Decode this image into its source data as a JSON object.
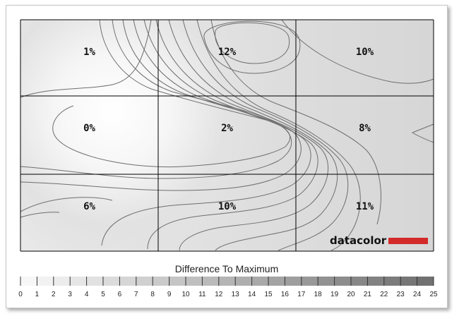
{
  "chart_data": {
    "type": "heatmap",
    "grid_rows": 3,
    "grid_cols": 3,
    "cells": [
      [
        "1%",
        "12%",
        "10%"
      ],
      [
        "0%",
        "2%",
        "8%"
      ],
      [
        "6%",
        "10%",
        "11%"
      ]
    ],
    "values": [
      [
        1,
        12,
        10
      ],
      [
        0,
        2,
        8
      ],
      [
        6,
        10,
        11
      ]
    ],
    "scale_title": "Difference To Maximum",
    "scale_ticks": [
      "0",
      "1",
      "2",
      "3",
      "4",
      "5",
      "6",
      "7",
      "8",
      "9",
      "10",
      "11",
      "12",
      "13",
      "14",
      "15",
      "16",
      "17",
      "18",
      "19",
      "20",
      "21",
      "22",
      "23",
      "24",
      "25"
    ],
    "scale_range": [
      0,
      25
    ],
    "contour_color": "#6e6e6e",
    "grid_line_color": "#000000"
  },
  "brand": {
    "name": "datacolor",
    "accent_color": "#d42a2a"
  }
}
